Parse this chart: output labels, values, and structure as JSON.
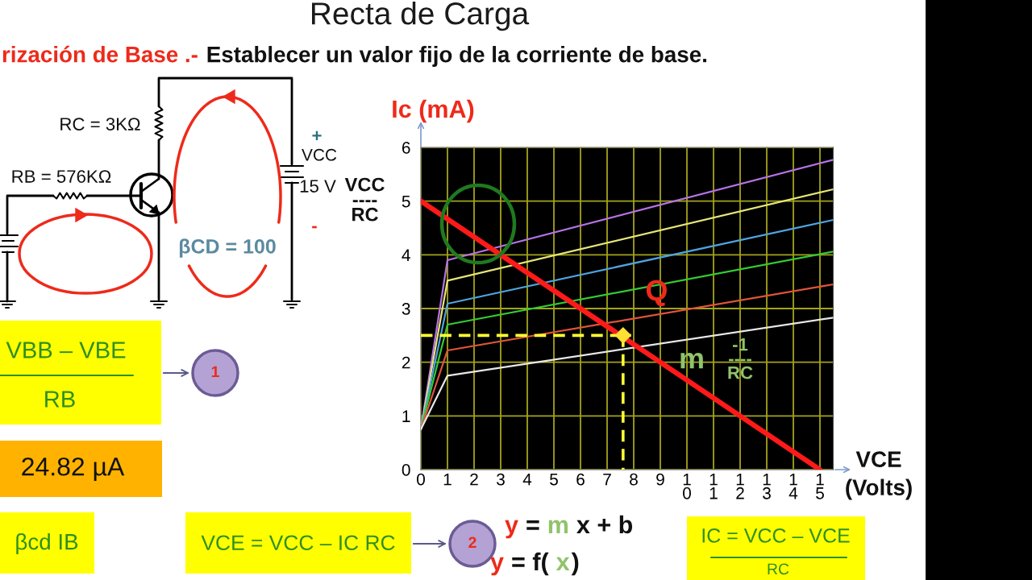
{
  "chart_data": {
    "type": "line",
    "title": "Recta de Carga",
    "subtitle": "Establecer un valor fijo de la corriente de base.",
    "xlabel": "VCE\n(Volts)",
    "ylabel": "Ic (mA)",
    "xlim": [
      0,
      15.5
    ],
    "ylim": [
      0,
      6
    ],
    "xticks": [
      0,
      1,
      2,
      3,
      4,
      5,
      6,
      7,
      8,
      9,
      {
        "value": 10,
        "label": "1\n0"
      },
      {
        "value": 11,
        "label": "1\n1"
      },
      {
        "value": 12,
        "label": "1\n2"
      },
      {
        "value": 13,
        "label": "1\n3"
      },
      {
        "value": 14,
        "label": "1\n4"
      },
      {
        "value": 15,
        "label": "1\n5"
      }
    ],
    "yticks": [
      0,
      1,
      2,
      3,
      4,
      5,
      6
    ],
    "grid": true,
    "series": [
      {
        "color": "#b673e6",
        "x": [
          0,
          1,
          15.5
        ],
        "values": [
          0.75,
          3.9,
          5.77
        ]
      },
      {
        "color": "#e6e67a",
        "x": [
          0,
          1,
          15.5
        ],
        "values": [
          0.75,
          3.52,
          5.22
        ]
      },
      {
        "color": "#4fa3e0",
        "x": [
          0,
          1,
          15.5
        ],
        "values": [
          0.75,
          3.09,
          4.65
        ]
      },
      {
        "color": "#33cc33",
        "x": [
          0,
          1,
          15.5
        ],
        "values": [
          0.75,
          2.7,
          4.06
        ]
      },
      {
        "color": "#e0553a",
        "x": [
          0,
          1,
          15.5
        ],
        "values": [
          0.75,
          2.22,
          3.45
        ]
      },
      {
        "color": "#e8e8e8",
        "x": [
          0,
          1,
          15.5
        ],
        "values": [
          0.75,
          1.75,
          2.83
        ]
      },
      {
        "color": "#ff1a1a",
        "x": [
          0,
          15
        ],
        "values": [
          5,
          0
        ]
      },
      {
        "color": "#ffff33",
        "x": [
          0,
          7.9
        ],
        "values": [
          2.5,
          2.5
        ],
        "line_style": "dashed"
      },
      {
        "color": "#ffff33",
        "x": [
          7.6,
          7.6
        ],
        "values": [
          2.5,
          0
        ],
        "line_style": "dashed"
      },
      {
        "type": "scatter",
        "color": "#ffe033",
        "x": [
          7.6
        ],
        "values": [
          2.5
        ],
        "marker": "diamond"
      }
    ],
    "annotations": [
      "rización de Base .-",
      "RC = 3KΩ",
      "RB = 576KΩ",
      "+",
      "VCC",
      "15 V",
      "-",
      "βCD = 100",
      {
        "text": "VCC\n----\nRC",
        "x": 0,
        "y": 5
      },
      {
        "text": "Q",
        "x": 7.6,
        "y": 2.5
      },
      "m",
      "-1\n----\nRC",
      "VBB – VBE",
      "RB",
      "1",
      "24.82 µA",
      "βcd IB",
      "VCE = VCC – IC RC",
      "2",
      "y",
      "=",
      "m",
      "x + b",
      "y",
      "= f(",
      "x",
      ")",
      "IC = VCC – VCE",
      "RC"
    ]
  }
}
